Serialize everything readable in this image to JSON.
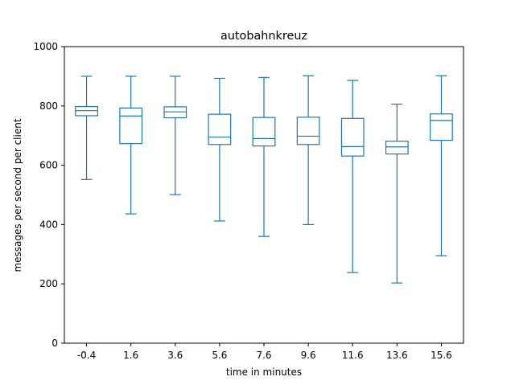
{
  "chart_data": {
    "type": "box",
    "title": "autobahnkreuz",
    "xlabel": "time in minutes",
    "ylabel": "messages per second per client",
    "ylim": [
      0,
      1000
    ],
    "yticks": [
      0,
      200,
      400,
      600,
      800,
      1000
    ],
    "categories": [
      "-0.4",
      "1.6",
      "3.6",
      "5.6",
      "7.6",
      "9.6",
      "11.6",
      "13.6",
      "15.6"
    ],
    "boxes": [
      {
        "x": "-0.4",
        "whisker_low": 552,
        "q1": 767,
        "median": 784,
        "q3": 798,
        "whisker_high": 900
      },
      {
        "x": "1.6",
        "whisker_low": 436,
        "q1": 673,
        "median": 766,
        "q3": 793,
        "whisker_high": 900
      },
      {
        "x": "3.6",
        "whisker_low": 501,
        "q1": 760,
        "median": 780,
        "q3": 797,
        "whisker_high": 900
      },
      {
        "x": "5.6",
        "whisker_low": 412,
        "q1": 670,
        "median": 695,
        "q3": 772,
        "whisker_high": 893
      },
      {
        "x": "7.6",
        "whisker_low": 360,
        "q1": 665,
        "median": 690,
        "q3": 761,
        "whisker_high": 896
      },
      {
        "x": "9.6",
        "whisker_low": 400,
        "q1": 670,
        "median": 698,
        "q3": 762,
        "whisker_high": 902
      },
      {
        "x": "11.6",
        "whisker_low": 238,
        "q1": 631,
        "median": 663,
        "q3": 758,
        "whisker_high": 886
      },
      {
        "x": "13.6",
        "whisker_low": 203,
        "q1": 638,
        "median": 662,
        "q3": 681,
        "whisker_high": 806
      },
      {
        "x": "15.6",
        "whisker_low": 295,
        "q1": 684,
        "median": 751,
        "q3": 773,
        "whisker_high": 902
      }
    ],
    "grid": false,
    "legend": "none",
    "color": "#1f77b4"
  }
}
